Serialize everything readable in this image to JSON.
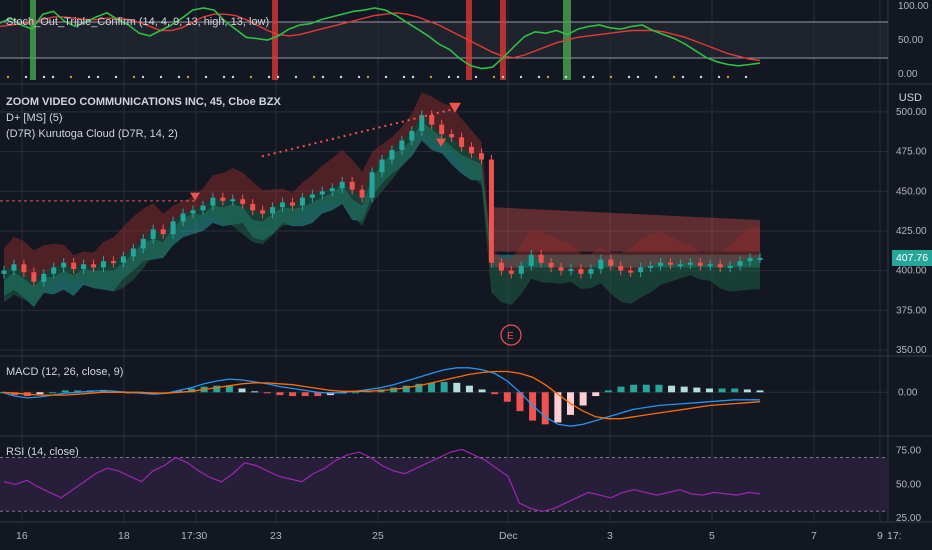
{
  "panes": {
    "stoch": {
      "label": "Stoch_Out_Triple_Confirm (14, 4, 9, 13, high, 13, low)",
      "ticks": [
        "100.00",
        "50.00",
        "0.00"
      ],
      "range": [
        0,
        100
      ]
    },
    "price": {
      "title": "ZOOM VIDEO COMMUNICATIONS INC, 45, Cboe BZX",
      "indicators": [
        "D+ [MS] (5)",
        "(D7R) Kurutoga Cloud (D7R, 14, 2)"
      ],
      "currency": "USD",
      "ticks": [
        "500.00",
        "475.00",
        "450.00",
        "425.00",
        "400.00",
        "375.00",
        "350.00"
      ],
      "range": [
        350,
        505
      ],
      "last_price": "407.76",
      "earnings_marker": "E"
    },
    "macd": {
      "label": "MACD (12, 26, close, 9)",
      "ticks": [
        "0.00"
      ]
    },
    "rsi": {
      "label": "RSI (14, close)",
      "ticks": [
        "75.00",
        "50.00",
        "25.00"
      ],
      "range": [
        25,
        80
      ]
    }
  },
  "time_axis": [
    "16",
    "18",
    "17:30",
    "23",
    "25",
    "Dec",
    "3",
    "5",
    "7",
    "9",
    "17:"
  ],
  "colors": {
    "background": "#131722",
    "grid": "#2a2e39",
    "up": "#26a69a",
    "down": "#ef5350",
    "stoch_k": "#2fbf44",
    "stoch_d": "#e53935",
    "macd_line": "#2196f3",
    "signal_line": "#ff6d00",
    "rsi_line": "#9c27b0",
    "rsi_band": "#2a1f3d",
    "price_tag": "#26a69a"
  },
  "chart_data": {
    "type": "line",
    "close": [
      400,
      404,
      399,
      393,
      398,
      402,
      405,
      401,
      404,
      402,
      406,
      405,
      409,
      414,
      420,
      426,
      423,
      431,
      436,
      438,
      441,
      446,
      444,
      445,
      442,
      438,
      436,
      440,
      443,
      441,
      446,
      448,
      450,
      452,
      456,
      451,
      446,
      462,
      470,
      476,
      482,
      488,
      498,
      492,
      486,
      484,
      478,
      474,
      470,
      405,
      400,
      398,
      403,
      410,
      405,
      402,
      400,
      401,
      398,
      401,
      407,
      403,
      400,
      399,
      402,
      403,
      405,
      404,
      404,
      405,
      403,
      404,
      402,
      403,
      406,
      408,
      408
    ],
    "stoch_k": [
      75,
      82,
      72,
      66,
      88,
      92,
      78,
      70,
      76,
      84,
      90,
      80,
      72,
      60,
      56,
      64,
      72,
      82,
      94,
      97,
      94,
      78,
      66,
      54,
      52,
      50,
      56,
      66,
      72,
      74,
      80,
      84,
      88,
      92,
      94,
      97,
      94,
      86,
      76,
      66,
      56,
      44,
      36,
      22,
      12,
      8,
      10,
      24,
      40,
      55,
      62,
      60,
      64,
      58,
      66,
      70,
      72,
      68,
      66,
      70,
      72,
      64,
      58,
      52,
      44,
      34,
      24,
      18,
      14,
      12,
      14,
      16
    ],
    "stoch_d": [
      70,
      72,
      74,
      76,
      80,
      84,
      84,
      82,
      80,
      80,
      82,
      82,
      80,
      76,
      70,
      64,
      64,
      68,
      76,
      84,
      88,
      88,
      86,
      80,
      72,
      64,
      58,
      56,
      58,
      62,
      66,
      70,
      74,
      78,
      82,
      86,
      88,
      90,
      88,
      84,
      78,
      72,
      64,
      56,
      48,
      40,
      32,
      26,
      24,
      28,
      34,
      40,
      46,
      50,
      54,
      56,
      58,
      60,
      62,
      64,
      64,
      64,
      62,
      58,
      54,
      48,
      42,
      36,
      30,
      26,
      22,
      20
    ],
    "macd": [
      0,
      -4,
      -6,
      -5,
      -3,
      -1,
      0,
      1,
      2,
      1,
      0,
      -1,
      -2,
      -1,
      2,
      5,
      9,
      12,
      14,
      13,
      11,
      9,
      6,
      4,
      2,
      0,
      -1,
      0,
      1,
      3,
      5,
      8,
      12,
      16,
      20,
      24,
      26,
      26,
      24,
      20,
      12,
      0,
      -14,
      -26,
      -34,
      -36,
      -34,
      -30,
      -26,
      -22,
      -18,
      -16,
      -14,
      -13,
      -12,
      -11,
      -10,
      -9,
      -8,
      -8,
      -8
    ],
    "signal": [
      0,
      -1,
      -2,
      -3,
      -3,
      -3,
      -2,
      -1,
      0,
      0,
      0,
      0,
      -1,
      -1,
      0,
      1,
      3,
      5,
      7,
      9,
      10,
      10,
      9,
      8,
      6,
      4,
      2,
      1,
      1,
      1,
      2,
      3,
      5,
      7,
      10,
      13,
      16,
      19,
      21,
      22,
      22,
      20,
      16,
      8,
      -2,
      -12,
      -20,
      -26,
      -28,
      -28,
      -26,
      -24,
      -22,
      -20,
      -18,
      -16,
      -14,
      -13,
      -12,
      -11,
      -10
    ],
    "rsi": [
      52,
      50,
      53,
      48,
      44,
      40,
      46,
      52,
      58,
      62,
      60,
      56,
      52,
      60,
      64,
      70,
      66,
      60,
      55,
      52,
      58,
      66,
      64,
      60,
      56,
      54,
      52,
      58,
      62,
      68,
      72,
      74,
      70,
      64,
      60,
      58,
      62,
      66,
      70,
      74,
      76,
      72,
      68,
      62,
      56,
      36,
      32,
      30,
      32,
      36,
      40,
      44,
      42,
      40,
      44,
      46,
      44,
      42,
      44,
      46,
      43,
      42,
      44,
      43,
      42,
      44,
      43
    ]
  }
}
